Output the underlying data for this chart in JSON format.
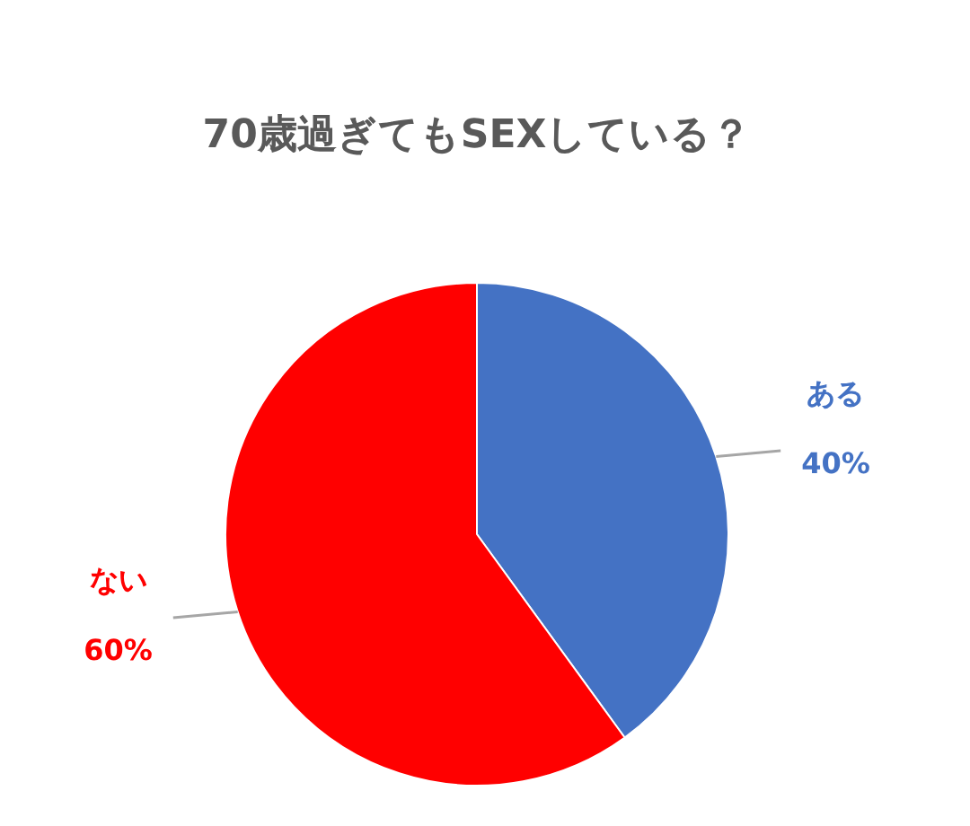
{
  "chart_data": {
    "type": "pie",
    "title": "70歳過ぎてもSEXしている？",
    "categories": [
      "ある",
      "ない"
    ],
    "values": [
      40,
      60
    ],
    "colors": [
      "#4472c4",
      "#ff0000"
    ],
    "value_labels": [
      "40%",
      "60%"
    ]
  }
}
